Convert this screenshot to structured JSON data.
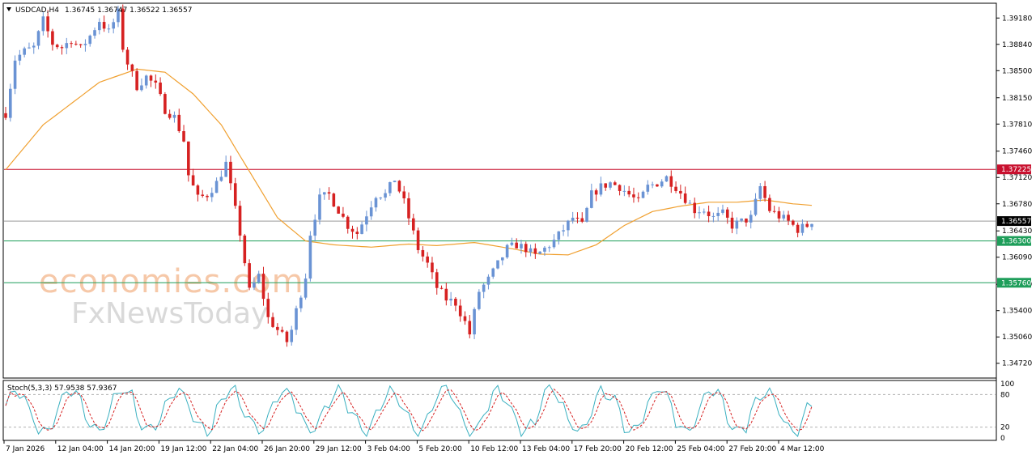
{
  "header": {
    "symbol_tf": "USDCAD,H4",
    "ohlc": "1.36745 1.36747 1.36522 1.36557"
  },
  "watermark": {
    "line1": "economies.com",
    "line2": "FxNewsToday"
  },
  "chart_data": {
    "type": "candlestick",
    "symbol": "USDCAD",
    "timeframe": "H4",
    "ylim": [
      1.3455,
      1.3935
    ],
    "y_ticks": [
      "1.39180",
      "1.38840",
      "1.38500",
      "1.38150",
      "1.37810",
      "1.37460",
      "1.37120",
      "1.36780",
      "1.36430",
      "1.36090",
      "1.35740",
      "1.35400",
      "1.35060",
      "1.34720"
    ],
    "x_ticks": [
      "7 Jan 2026",
      "12 Jan 04:00",
      "14 Jan 20:00",
      "19 Jan 12:00",
      "22 Jan 04:00",
      "26 Jan 20:00",
      "29 Jan 12:00",
      "3 Feb 04:00",
      "5 Feb 20:00",
      "10 Feb 12:00",
      "13 Feb 04:00",
      "17 Feb 20:00",
      "20 Feb 12:00",
      "25 Feb 04:00",
      "27 Feb 20:00",
      "4 Mar 12:00"
    ],
    "levels": [
      {
        "value": 1.37225,
        "label": "1.37225",
        "color": "#c8102e"
      },
      {
        "value": 1.36557,
        "label": "1.36557",
        "color": "#000000"
      },
      {
        "value": 1.363,
        "label": "1.36300",
        "color": "#1e9e5a"
      },
      {
        "value": 1.3576,
        "label": "1.35760",
        "color": "#1e9e5a"
      }
    ],
    "close_path": [
      [
        0,
        1.3795
      ],
      [
        2,
        1.3865
      ],
      [
        4,
        1.3875
      ],
      [
        6,
        1.388
      ],
      [
        8,
        1.3915
      ],
      [
        10,
        1.3885
      ],
      [
        12,
        1.388
      ],
      [
        14,
        1.389
      ],
      [
        16,
        1.3878
      ],
      [
        18,
        1.3895
      ],
      [
        20,
        1.3915
      ],
      [
        22,
        1.39
      ],
      [
        24,
        1.3925
      ],
      [
        25,
        1.388
      ],
      [
        26,
        1.386
      ],
      [
        28,
        1.383
      ],
      [
        30,
        1.3842
      ],
      [
        32,
        1.383
      ],
      [
        34,
        1.38
      ],
      [
        36,
        1.379
      ],
      [
        38,
        1.376
      ],
      [
        39,
        1.3715
      ],
      [
        41,
        1.3685
      ],
      [
        43,
        1.369
      ],
      [
        45,
        1.3705
      ],
      [
        47,
        1.373
      ],
      [
        48,
        1.37
      ],
      [
        50,
        1.364
      ],
      [
        52,
        1.3565
      ],
      [
        54,
        1.3585
      ],
      [
        56,
        1.353
      ],
      [
        58,
        1.3515
      ],
      [
        60,
        1.35
      ],
      [
        61,
        1.3515
      ],
      [
        62,
        1.354
      ],
      [
        64,
        1.3585
      ],
      [
        65,
        1.364
      ],
      [
        67,
        1.3685
      ],
      [
        69,
        1.369
      ],
      [
        71,
        1.367
      ],
      [
        73,
        1.365
      ],
      [
        75,
        1.364
      ],
      [
        77,
        1.3665
      ],
      [
        79,
        1.369
      ],
      [
        81,
        1.369
      ],
      [
        83,
        1.371
      ],
      [
        85,
        1.368
      ],
      [
        87,
        1.364
      ],
      [
        88,
        1.362
      ],
      [
        90,
        1.36
      ],
      [
        92,
        1.357
      ],
      [
        94,
        1.3555
      ],
      [
        96,
        1.355
      ],
      [
        98,
        1.3525
      ],
      [
        99,
        1.351
      ],
      [
        101,
        1.3565
      ],
      [
        103,
        1.358
      ],
      [
        105,
        1.36
      ],
      [
        107,
        1.362
      ],
      [
        109,
        1.3625
      ],
      [
        111,
        1.362
      ],
      [
        113,
        1.361
      ],
      [
        115,
        1.362
      ],
      [
        117,
        1.363
      ],
      [
        119,
        1.3645
      ],
      [
        121,
        1.366
      ],
      [
        123,
        1.365
      ],
      [
        125,
        1.369
      ],
      [
        127,
        1.37
      ],
      [
        129,
        1.3705
      ],
      [
        131,
        1.37
      ],
      [
        133,
        1.369
      ],
      [
        135,
        1.368
      ],
      [
        137,
        1.37
      ],
      [
        139,
        1.3705
      ],
      [
        141,
        1.3712
      ],
      [
        143,
        1.37
      ],
      [
        145,
        1.3685
      ],
      [
        147,
        1.367
      ],
      [
        149,
        1.367
      ],
      [
        151,
        1.366
      ],
      [
        153,
        1.3665
      ],
      [
        155,
        1.365
      ],
      [
        157,
        1.3655
      ],
      [
        159,
        1.366
      ],
      [
        161,
        1.37
      ],
      [
        163,
        1.367
      ],
      [
        165,
        1.3662
      ],
      [
        167,
        1.3655
      ],
      [
        169,
        1.3645
      ],
      [
        171,
        1.365
      ],
      [
        172,
        1.3656
      ]
    ],
    "ma_path": [
      [
        0,
        1.3722
      ],
      [
        8,
        1.378
      ],
      [
        20,
        1.3835
      ],
      [
        28,
        1.3852
      ],
      [
        34,
        1.3848
      ],
      [
        40,
        1.382
      ],
      [
        46,
        1.378
      ],
      [
        52,
        1.372
      ],
      [
        58,
        1.366
      ],
      [
        64,
        1.363
      ],
      [
        70,
        1.3625
      ],
      [
        78,
        1.3622
      ],
      [
        86,
        1.3626
      ],
      [
        92,
        1.3624
      ],
      [
        100,
        1.3628
      ],
      [
        108,
        1.362
      ],
      [
        114,
        1.3613
      ],
      [
        120,
        1.3612
      ],
      [
        126,
        1.3625
      ],
      [
        132,
        1.365
      ],
      [
        138,
        1.3668
      ],
      [
        144,
        1.3675
      ],
      [
        150,
        1.368
      ],
      [
        156,
        1.368
      ],
      [
        162,
        1.3683
      ],
      [
        168,
        1.3678
      ],
      [
        172,
        1.3676
      ]
    ],
    "stoch": {
      "label": "Stoch(5,3,3) 57.9538 57.9367",
      "ylim": [
        0,
        100
      ],
      "ticks": [
        "100",
        "80",
        "20",
        "0"
      ],
      "k_value": 57.9538,
      "d_value": 57.9367
    }
  },
  "colors": {
    "bull": "#6a93d4",
    "bear": "#d62121",
    "ma": "#f0a030",
    "stoch_main": "#3ab0c0",
    "stoch_signal": "#d62121",
    "grid_dash": "#b0b0b0"
  }
}
